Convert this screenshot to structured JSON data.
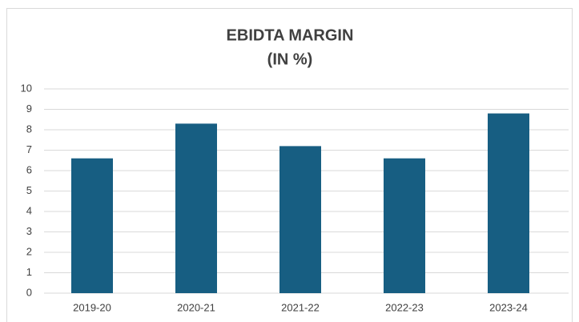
{
  "chart_data": {
    "type": "bar",
    "title": "EBIDTA MARGIN",
    "subtitle": "(IN %)",
    "categories": [
      "2019-20",
      "2020-21",
      "2021-22",
      "2022-23",
      "2023-24"
    ],
    "values": [
      6.6,
      8.3,
      7.2,
      6.6,
      8.8
    ],
    "color": "#175e82",
    "ylim": [
      0,
      10
    ],
    "yticks": [
      0,
      1,
      2,
      3,
      4,
      5,
      6,
      7,
      8,
      9,
      10
    ],
    "grid": true
  }
}
